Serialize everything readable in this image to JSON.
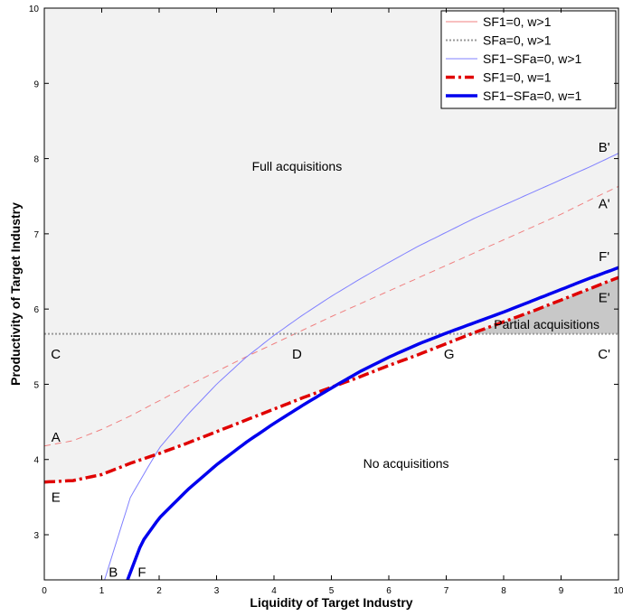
{
  "chart_data": {
    "type": "line",
    "title": "",
    "xlabel": "Liquidity of Target Industry",
    "ylabel": "Productivity of Target Industry",
    "xlim": [
      0,
      10
    ],
    "ylim": [
      2.4,
      10
    ],
    "xticks": [
      "0",
      "1",
      "2",
      "3",
      "4",
      "5",
      "6",
      "7",
      "8",
      "9",
      "10"
    ],
    "yticks": [
      "3",
      "4",
      "5",
      "6",
      "7",
      "8",
      "9",
      "10"
    ],
    "grid": false,
    "legend_position": "top-right",
    "colors": {
      "full_region": "#f2f2f2",
      "partial_region": "#c8c8c8",
      "sf1_w_gt1": "#f08080",
      "sfa_w_gt1": "#999999",
      "sf1_sfa_w_gt1": "#8080ff",
      "sf1_w_eq1": "#e00000",
      "sf1_sfa_w_eq1": "#0000ee"
    },
    "series": [
      {
        "name": "SF1=0, w>1",
        "style": "dashed thin",
        "x": [
          0,
          0.5,
          1,
          1.5,
          2,
          2.5,
          3,
          3.5,
          4,
          4.5,
          5,
          5.5,
          6,
          6.5,
          7,
          7.5,
          8,
          8.5,
          9,
          9.5,
          10
        ],
        "y": [
          4.18,
          4.25,
          4.4,
          4.58,
          4.78,
          4.98,
          5.17,
          5.36,
          5.54,
          5.72,
          5.9,
          6.07,
          6.24,
          6.41,
          6.58,
          6.75,
          6.92,
          7.09,
          7.26,
          7.45,
          7.63
        ]
      },
      {
        "name": "SFa=0, w>1",
        "style": "dotted",
        "x": [
          0,
          10
        ],
        "y": [
          5.67,
          5.67
        ]
      },
      {
        "name": "SF1−SFa=0, w>1",
        "style": "solid thin",
        "x": [
          1.05,
          1.5,
          2,
          2.5,
          3,
          3.5,
          4,
          4.5,
          5,
          5.5,
          6,
          6.5,
          7,
          7.5,
          8,
          8.5,
          9,
          9.5,
          10
        ],
        "y": [
          2.4,
          3.5,
          4.15,
          4.6,
          5.0,
          5.35,
          5.65,
          5.92,
          6.17,
          6.4,
          6.62,
          6.83,
          7.02,
          7.21,
          7.38,
          7.55,
          7.72,
          7.89,
          8.07
        ]
      },
      {
        "name": "SF1=0, w=1",
        "style": "dash-dot thick",
        "x": [
          0,
          0.5,
          1,
          1.5,
          2,
          2.5,
          3,
          3.5,
          4,
          4.5,
          5,
          5.5,
          6,
          6.5,
          7,
          7.5,
          8,
          8.5,
          9,
          9.5,
          10
        ],
        "y": [
          3.7,
          3.72,
          3.8,
          3.95,
          4.08,
          4.22,
          4.37,
          4.52,
          4.67,
          4.82,
          4.96,
          5.1,
          5.25,
          5.39,
          5.54,
          5.69,
          5.83,
          5.97,
          6.12,
          6.27,
          6.42
        ]
      },
      {
        "name": "SF1−SFa=0, w=1",
        "style": "solid thick",
        "x": [
          1.45,
          1.7,
          2,
          2.5,
          3,
          3.5,
          4,
          4.5,
          5,
          5.5,
          6,
          6.5,
          7,
          7.5,
          8,
          8.5,
          9,
          9.5,
          10
        ],
        "y": [
          2.4,
          2.9,
          3.22,
          3.6,
          3.93,
          4.22,
          4.48,
          4.72,
          4.95,
          5.17,
          5.36,
          5.53,
          5.68,
          5.82,
          5.96,
          6.11,
          6.26,
          6.41,
          6.55
        ]
      }
    ],
    "region_labels": [
      {
        "text": "Full acquisitions",
        "x": 4.4,
        "y": 7.9
      },
      {
        "text": "No acquisitions",
        "x": 6.3,
        "y": 3.95
      },
      {
        "text": "Partial acquisitions",
        "x": 8.75,
        "y": 5.8
      }
    ],
    "point_labels": [
      {
        "text": "A",
        "x": 0.2,
        "y": 4.3
      },
      {
        "text": "B",
        "x": 1.2,
        "y": 2.5
      },
      {
        "text": "C",
        "x": 0.2,
        "y": 5.4
      },
      {
        "text": "D",
        "x": 4.4,
        "y": 5.4
      },
      {
        "text": "E",
        "x": 0.2,
        "y": 3.5
      },
      {
        "text": "F",
        "x": 1.7,
        "y": 2.5
      },
      {
        "text": "G",
        "x": 7.05,
        "y": 5.4
      },
      {
        "text": "A'",
        "x": 9.75,
        "y": 7.4
      },
      {
        "text": "B'",
        "x": 9.75,
        "y": 8.15
      },
      {
        "text": "C'",
        "x": 9.75,
        "y": 5.4
      },
      {
        "text": "E'",
        "x": 9.75,
        "y": 6.15
      },
      {
        "text": "F'",
        "x": 9.75,
        "y": 6.7
      }
    ]
  }
}
